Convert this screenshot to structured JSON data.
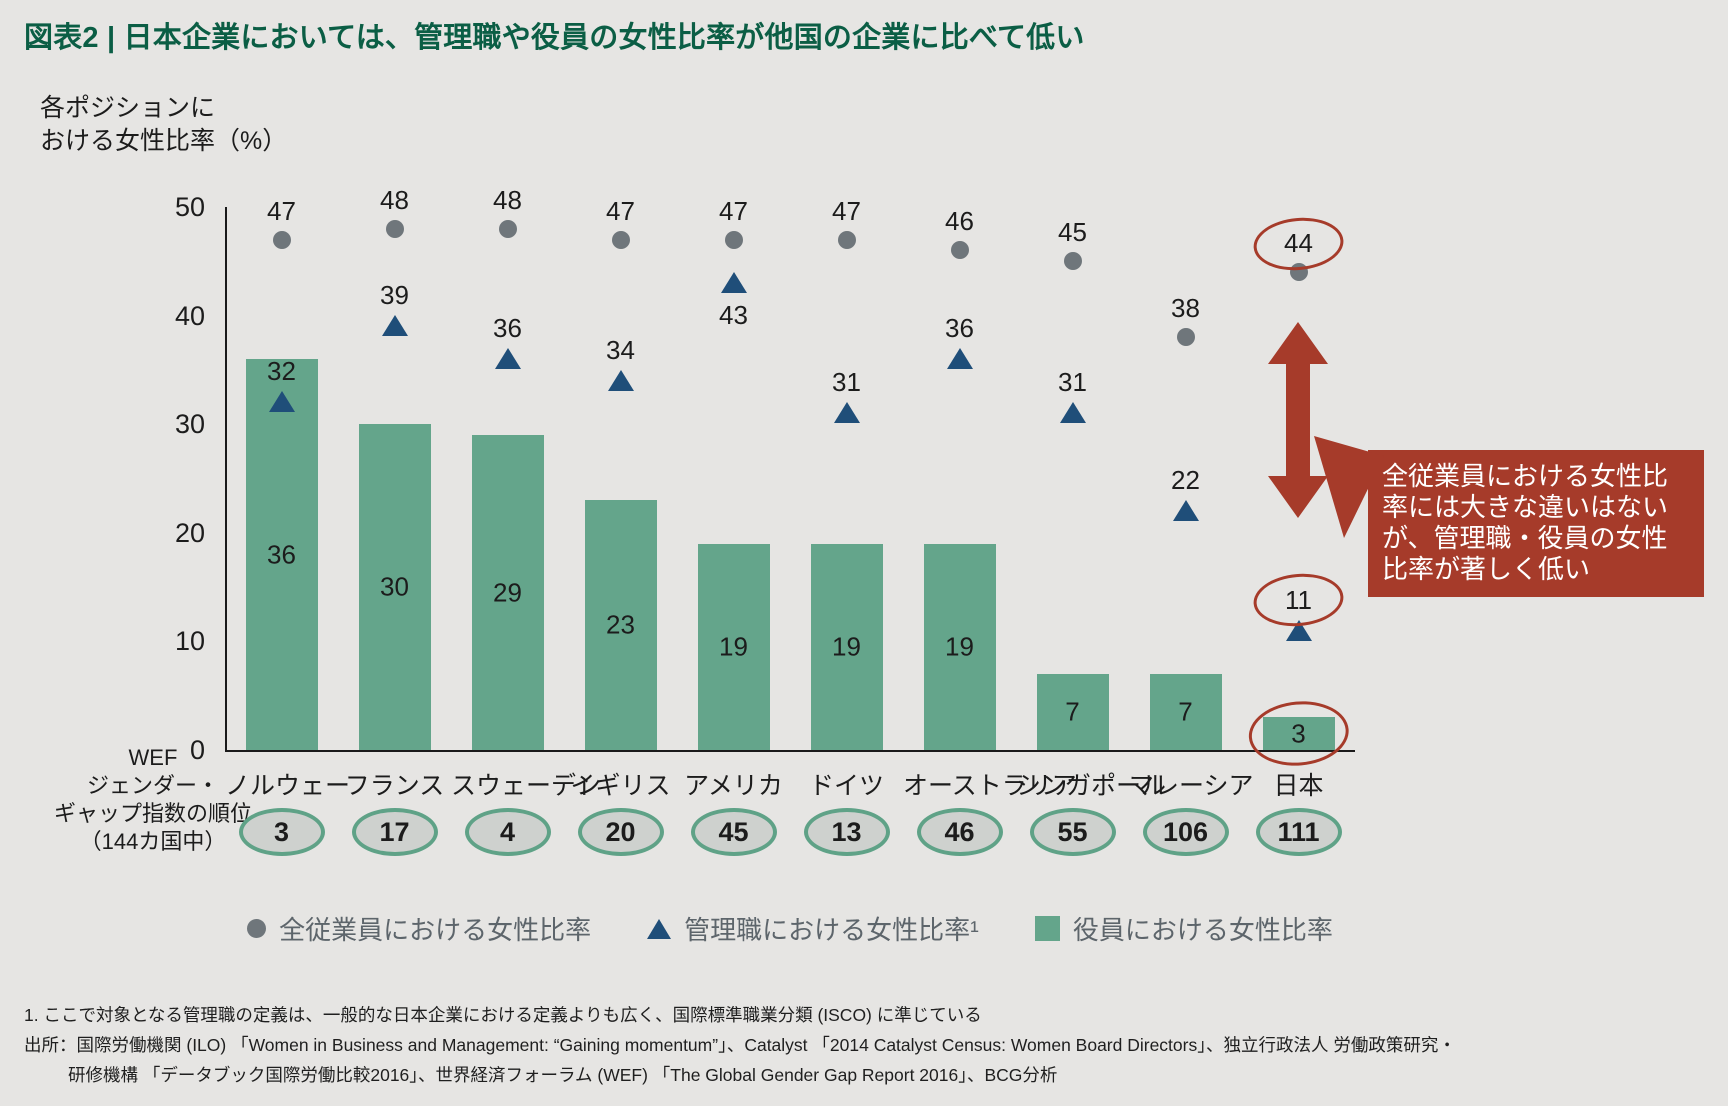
{
  "title": "図表2 | 日本企業においては、管理職や役員の女性比率が他国の企業に比べて低い",
  "colors": {
    "background": "#e6e5e3",
    "title_green": "#0b5e45",
    "bar_green": "#64a58b",
    "dot_gray": "#6f767b",
    "triangle_navy": "#1f4e79",
    "highlight_red": "#a63b2a",
    "oval_fill": "#ced1ce",
    "oval_border": "#5fa287",
    "legend_text": "#5d656b"
  },
  "chart_data": {
    "type": "bar",
    "title": "図表2 | 日本企業においては、管理職や役員の女性比率が他国の企業に比べて低い",
    "ylabel_lines": [
      "各ポジションに",
      "おける女性比率（%）"
    ],
    "ylim": [
      0,
      50
    ],
    "yticks": [
      0,
      10,
      20,
      30,
      40,
      50
    ],
    "grid": "off",
    "legend_position": "bottom",
    "categories": [
      "ノルウェー",
      "フランス",
      "スウェーデン",
      "イギリス",
      "アメリカ",
      "ドイツ",
      "オーストラリア",
      "シンガポール",
      "マレーシア",
      "日本"
    ],
    "series": [
      {
        "name": "全従業員における女性比率",
        "marker": "circle",
        "color": "#6f767b",
        "values": [
          47,
          48,
          48,
          47,
          47,
          47,
          46,
          45,
          38,
          44
        ]
      },
      {
        "name": "管理職における女性比率¹",
        "marker": "triangle",
        "color": "#1f4e79",
        "values": [
          32,
          39,
          36,
          34,
          43,
          31,
          36,
          31,
          22,
          11
        ]
      },
      {
        "name": "役員における女性比率",
        "marker": "bar",
        "color": "#64a58b",
        "values": [
          36,
          30,
          29,
          23,
          19,
          19,
          19,
          7,
          7,
          3
        ]
      }
    ],
    "highlight": {
      "circled_country_index": 9,
      "triangle_label_below_index": 4,
      "circled_values": [
        44,
        11,
        3
      ],
      "arrow": "red double-headed vertical arrow at 日本 column between dot and triangle"
    }
  },
  "wef": {
    "label_lines": [
      "WEF",
      "ジェンダー・",
      "ギャップ指数の順位",
      "（144カ国中）"
    ],
    "ranks": [
      3,
      17,
      4,
      20,
      45,
      13,
      46,
      55,
      106,
      111
    ]
  },
  "legend": {
    "items": [
      {
        "marker": "circle",
        "label": "全従業員における女性比率"
      },
      {
        "marker": "triangle",
        "label": "管理職における女性比率¹"
      },
      {
        "marker": "square",
        "label": "役員における女性比率"
      }
    ]
  },
  "annotation": {
    "text": "全従業員における女性比率には大きな違いはないが、管理職・役員の女性比率が著しく低い"
  },
  "footnotes": {
    "note1": "1. ここで対象となる管理職の定義は、一般的な日本企業における定義よりも広く、国際標準職業分類 (ISCO) に準じている",
    "source_line1": "出所：国際労働機関 (ILO) 「Women in Business and Management: “Gaining momentum”」、Catalyst 「2014 Catalyst Census: Women Board Directors」、独立行政法人 労働政策研究・",
    "source_line2": "研修機構 「データブック国際労働比較2016」、世界経済フォーラム (WEF) 「The Global Gender Gap Report 2016」、BCG分析"
  }
}
